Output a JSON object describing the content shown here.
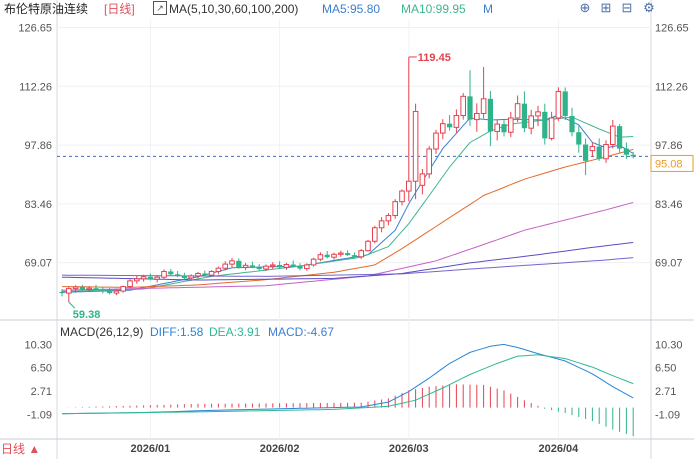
{
  "main_header": {
    "title": "布伦特原油连续",
    "period": "[日线]",
    "ma_label": "MA(5,10,30,60,100,200)",
    "ma5": "MA5:95.80",
    "ma10": "MA10:99.95",
    "more": "M"
  },
  "macd_header": {
    "label": "MACD(26,12,9)",
    "diff": "DIFF:1.58",
    "dea": "DEA:3.91",
    "macd": "MACD:-4.67"
  },
  "footer": {
    "period_button": "日线 ▲"
  },
  "toolbar": {
    "icons": [
      "crosshair-icon",
      "zoom-in-icon",
      "zoom-out-icon",
      "settings-icon"
    ],
    "glyphs": [
      "⊕",
      "⊞",
      "⊟",
      "⚙"
    ]
  },
  "colors": {
    "up": "#e6414e",
    "down": "#2fb38a",
    "ma5": "#3d7ed0",
    "ma10": "#3fb58f",
    "ma30": "#e26b2c",
    "ma60": "#c462c8",
    "ma100": "#5c4cc4",
    "diff": "#2a85d8",
    "dea": "#30b896",
    "last_price": "#e89a2a",
    "dashed": "#3b6fc0"
  },
  "chart_data": [
    {
      "type": "candlestick",
      "name": "布伦特原油连续",
      "ylim": [
        55.5,
        128.5
      ],
      "y_ticks": [
        126.65,
        112.26,
        97.86,
        83.46,
        69.07
      ],
      "x_ticks": [
        "2026/01",
        "2026/02",
        "2026/03",
        "2026/04"
      ],
      "last_price": 95.08,
      "high_label": "119.45",
      "low_label": "59.38",
      "ohlc": [
        [
          61.9,
          62.6,
          60.8,
          61.6
        ],
        [
          61.6,
          63.2,
          59.38,
          62.7
        ],
        [
          62.7,
          63.5,
          61.7,
          63.1
        ],
        [
          63.1,
          63.6,
          62.2,
          62.5
        ],
        [
          62.5,
          63.3,
          61.9,
          62.8
        ],
        [
          62.8,
          63.6,
          62.0,
          62.3
        ],
        [
          62.3,
          63.1,
          61.5,
          62.0
        ],
        [
          62.0,
          62.9,
          61.3,
          61.6
        ],
        [
          61.6,
          62.5,
          61.1,
          62.1
        ],
        [
          62.1,
          63.4,
          61.7,
          63.2
        ],
        [
          63.2,
          65.0,
          62.8,
          64.6
        ],
        [
          64.6,
          65.8,
          63.9,
          65.1
        ],
        [
          65.1,
          66.1,
          64.4,
          65.6
        ],
        [
          65.6,
          66.4,
          64.7,
          65.0
        ],
        [
          65.0,
          66.0,
          64.2,
          65.5
        ],
        [
          65.5,
          67.4,
          65.1,
          66.9
        ],
        [
          66.9,
          67.5,
          65.9,
          66.2
        ],
        [
          66.2,
          67.0,
          65.5,
          65.9
        ],
        [
          65.9,
          66.6,
          64.9,
          65.3
        ],
        [
          65.3,
          66.2,
          64.6,
          65.8
        ],
        [
          65.8,
          66.8,
          65.2,
          66.4
        ],
        [
          66.4,
          67.1,
          65.7,
          66.0
        ],
        [
          66.0,
          67.2,
          65.6,
          66.9
        ],
        [
          66.9,
          68.1,
          66.2,
          67.7
        ],
        [
          67.7,
          69.4,
          67.2,
          68.7
        ],
        [
          68.7,
          70.2,
          68.0,
          69.5
        ],
        [
          69.5,
          70.1,
          67.6,
          67.9
        ],
        [
          67.9,
          69.0,
          67.2,
          68.4
        ],
        [
          68.4,
          69.3,
          67.7,
          68.0
        ],
        [
          68.0,
          68.7,
          67.1,
          67.5
        ],
        [
          67.5,
          68.6,
          67.0,
          68.2
        ],
        [
          68.2,
          69.2,
          67.5,
          68.5
        ],
        [
          68.5,
          69.4,
          67.6,
          67.9
        ],
        [
          67.9,
          69.0,
          67.3,
          68.6
        ],
        [
          68.6,
          69.6,
          67.9,
          68.2
        ],
        [
          68.2,
          68.9,
          67.2,
          67.6
        ],
        [
          67.6,
          68.9,
          67.1,
          68.5
        ],
        [
          68.5,
          70.3,
          68.1,
          69.9
        ],
        [
          69.9,
          71.6,
          69.4,
          71.0
        ],
        [
          71.0,
          71.9,
          70.1,
          70.4
        ],
        [
          70.4,
          71.5,
          69.8,
          71.1
        ],
        [
          71.1,
          72.0,
          70.5,
          71.4
        ],
        [
          71.4,
          72.1,
          70.7,
          70.9
        ],
        [
          70.9,
          71.6,
          70.2,
          70.5
        ],
        [
          70.5,
          72.4,
          70.0,
          72.0
        ],
        [
          72.0,
          74.6,
          71.8,
          74.3
        ],
        [
          74.3,
          78.1,
          73.8,
          77.6
        ],
        [
          77.6,
          80.2,
          76.5,
          79.3
        ],
        [
          79.3,
          81.2,
          78.2,
          80.6
        ],
        [
          80.6,
          84.6,
          79.8,
          84.0
        ],
        [
          84.0,
          87.0,
          83.1,
          86.6
        ],
        [
          86.6,
          119.45,
          84.1,
          89.0
        ],
        [
          89.0,
          108.0,
          84.6,
          106.1
        ],
        [
          88.0,
          92.0,
          85.8,
          90.8
        ],
        [
          90.8,
          97.6,
          89.7,
          96.9
        ],
        [
          96.9,
          101.6,
          95.7,
          100.8
        ],
        [
          100.8,
          104.2,
          99.3,
          103.1
        ],
        [
          103.1,
          105.2,
          101.4,
          102.2
        ],
        [
          102.2,
          106.6,
          100.9,
          105.1
        ],
        [
          105.1,
          110.6,
          104.1,
          109.8
        ],
        [
          109.8,
          116.2,
          102.6,
          104.1
        ],
        [
          104.1,
          108.1,
          101.1,
          105.6
        ],
        [
          105.6,
          117.0,
          104.4,
          109.2
        ],
        [
          109.2,
          111.1,
          97.6,
          101.2
        ],
        [
          101.2,
          104.1,
          99.0,
          103.0
        ],
        [
          103.0,
          104.0,
          100.0,
          101.0
        ],
        [
          101.0,
          106.0,
          99.8,
          104.5
        ],
        [
          104.5,
          110.0,
          103.5,
          108.0
        ],
        [
          108.0,
          111.0,
          101.0,
          102.0
        ],
        [
          102.0,
          106.5,
          100.5,
          105.0
        ],
        [
          105.0,
          107.5,
          102.5,
          106.0
        ],
        [
          106.0,
          108.0,
          98.0,
          99.5
        ],
        [
          99.5,
          106.0,
          99.0,
          104.5
        ],
        [
          104.5,
          112.0,
          103.8,
          111.0
        ],
        [
          111.0,
          112.0,
          104.0,
          105.0
        ],
        [
          105.0,
          107.0,
          100.0,
          101.0
        ],
        [
          101.0,
          102.5,
          96.0,
          98.0
        ],
        [
          98.0,
          99.5,
          90.5,
          94.0
        ],
        [
          96.5,
          98.5,
          95.0,
          97.5
        ],
        [
          97.5,
          99.5,
          94.0,
          94.5
        ],
        [
          94.5,
          99.0,
          93.5,
          98.0
        ],
        [
          98.0,
          104.0,
          97.0,
          102.5
        ],
        [
          102.5,
          103.0,
          96.0,
          97.0
        ],
        [
          97.0,
          98.5,
          94.5,
          95.5
        ],
        [
          95.5,
          96.2,
          94.6,
          95.08
        ]
      ],
      "ma_series": [
        {
          "name": "MA5",
          "anchors": [
            [
              0,
              61.8
            ],
            [
              10,
              62.3
            ],
            [
              20,
              65.6
            ],
            [
              25,
              67.8
            ],
            [
              35,
              68.2
            ],
            [
              45,
              71.0
            ],
            [
              49,
              77.0
            ],
            [
              51,
              83.5
            ],
            [
              53,
              89.0
            ],
            [
              56,
              97.0
            ],
            [
              60,
              104.5
            ],
            [
              63,
              104.0
            ],
            [
              66,
              104.2
            ],
            [
              71,
              104.0
            ],
            [
              73,
              105.2
            ],
            [
              76,
              102.8
            ],
            [
              78,
              98.5
            ],
            [
              80,
              97.2
            ],
            [
              82,
              97.8
            ],
            [
              84,
              95.8
            ]
          ]
        },
        {
          "name": "MA10",
          "anchors": [
            [
              0,
              62.0
            ],
            [
              12,
              62.6
            ],
            [
              22,
              65.7
            ],
            [
              34,
              68.0
            ],
            [
              44,
              70.4
            ],
            [
              48,
              73.0
            ],
            [
              51,
              78.6
            ],
            [
              54,
              85.5
            ],
            [
              57,
              92.5
            ],
            [
              60,
              98.5
            ],
            [
              63,
              101.3
            ],
            [
              66,
              103.0
            ],
            [
              70,
              103.8
            ],
            [
              75,
              104.7
            ],
            [
              79,
              101.8
            ],
            [
              82,
              99.8
            ],
            [
              84,
              99.95
            ]
          ]
        },
        {
          "name": "MA30",
          "anchors": [
            [
              0,
              63.2
            ],
            [
              10,
              63.0
            ],
            [
              20,
              63.6
            ],
            [
              30,
              64.9
            ],
            [
              40,
              66.7
            ],
            [
              46,
              68.5
            ],
            [
              50,
              72.5
            ],
            [
              56,
              79.0
            ],
            [
              62,
              85.5
            ],
            [
              68,
              89.5
            ],
            [
              74,
              92.5
            ],
            [
              80,
              95.0
            ],
            [
              84,
              96.8
            ]
          ]
        },
        {
          "name": "MA60",
          "anchors": [
            [
              0,
              62.3
            ],
            [
              30,
              63.4
            ],
            [
              45,
              65.8
            ],
            [
              55,
              69.5
            ],
            [
              62,
              73.5
            ],
            [
              68,
              77.0
            ],
            [
              74,
              79.5
            ],
            [
              80,
              82.0
            ],
            [
              84,
              83.8
            ]
          ]
        },
        {
          "name": "MA100",
          "anchors": [
            [
              0,
              65.5
            ],
            [
              20,
              64.8
            ],
            [
              40,
              65.2
            ],
            [
              50,
              66.4
            ],
            [
              60,
              69.0
            ],
            [
              70,
              71.0
            ],
            [
              78,
              72.8
            ],
            [
              84,
              74.0
            ]
          ]
        },
        {
          "name": "MA200",
          "anchors": [
            [
              0,
              66.0
            ],
            [
              30,
              65.7
            ],
            [
              50,
              66.3
            ],
            [
              60,
              67.5
            ],
            [
              70,
              68.6
            ],
            [
              80,
              69.7
            ],
            [
              84,
              70.3
            ]
          ]
        }
      ]
    },
    {
      "type": "macd",
      "name": "MACD(26,12,9)",
      "ylim": [
        -4.8,
        12.0
      ],
      "y_ticks": [
        10.3,
        6.5,
        2.71,
        -1.09
      ],
      "diff_anchors": [
        [
          0,
          -1.0
        ],
        [
          12,
          -0.8
        ],
        [
          24,
          -0.4
        ],
        [
          36,
          -0.1
        ],
        [
          44,
          0.1
        ],
        [
          48,
          0.9
        ],
        [
          51,
          2.6
        ],
        [
          54,
          4.8
        ],
        [
          57,
          7.2
        ],
        [
          60,
          9.0
        ],
        [
          63,
          10.0
        ],
        [
          65,
          10.3
        ],
        [
          67,
          9.8
        ],
        [
          70,
          8.8
        ],
        [
          74,
          7.6
        ],
        [
          78,
          5.5
        ],
        [
          81,
          3.4
        ],
        [
          84,
          1.58
        ]
      ],
      "dea_anchors": [
        [
          0,
          -1.0
        ],
        [
          20,
          -0.7
        ],
        [
          40,
          -0.3
        ],
        [
          48,
          0.2
        ],
        [
          52,
          1.2
        ],
        [
          56,
          3.2
        ],
        [
          60,
          5.4
        ],
        [
          64,
          7.2
        ],
        [
          67,
          8.4
        ],
        [
          70,
          8.6
        ],
        [
          74,
          8.0
        ],
        [
          78,
          6.6
        ],
        [
          81,
          5.2
        ],
        [
          84,
          3.91
        ]
      ],
      "histogram_anchors": [
        [
          0,
          0.0
        ],
        [
          20,
          0.6
        ],
        [
          44,
          0.8
        ],
        [
          48,
          1.5
        ],
        [
          51,
          2.8
        ],
        [
          54,
          3.4
        ],
        [
          58,
          3.8
        ],
        [
          62,
          3.7
        ],
        [
          65,
          2.8
        ],
        [
          68,
          1.2
        ],
        [
          70,
          0.3
        ],
        [
          71,
          -0.2
        ],
        [
          74,
          -0.9
        ],
        [
          78,
          -2.2
        ],
        [
          81,
          -3.6
        ],
        [
          84,
          -4.67
        ]
      ]
    }
  ]
}
